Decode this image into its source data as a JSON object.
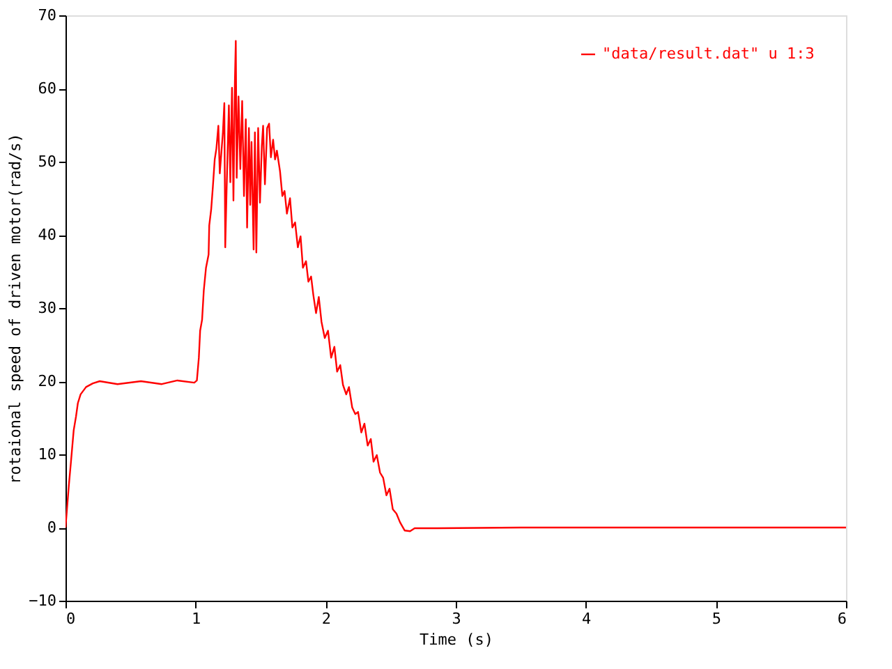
{
  "chart_data": {
    "type": "line",
    "xlabel": "Time (s)",
    "ylabel": "rotaional speed of driven motor(rad/s)",
    "xlim": [
      0,
      6
    ],
    "xticks": [
      0,
      1,
      2,
      3,
      4,
      5,
      6
    ],
    "ylim": [
      -10,
      70
    ],
    "yticks": [
      -10,
      0,
      10,
      20,
      30,
      40,
      50,
      60,
      70
    ],
    "grid": false,
    "legend": "top right",
    "marker": "none",
    "line_style": "solid",
    "series": [
      {
        "name": "\"data/result.dat\" u 1:3",
        "color": "#ff0000",
        "x": [
          0,
          0.01,
          0.025,
          0.042,
          0.063,
          0.081,
          0.095,
          0.116,
          0.158,
          0.21,
          0.263,
          0.4,
          0.58,
          0.74,
          0.86,
          0.99,
          1.01,
          1.025,
          1.035,
          1.05,
          1.063,
          1.08,
          1.1,
          1.105,
          1.12,
          1.133,
          1.147,
          1.16,
          1.175,
          1.186,
          1.21,
          1.221,
          1.228,
          1.239,
          1.256,
          1.267,
          1.28,
          1.291,
          1.302,
          1.309,
          1.316,
          1.33,
          1.344,
          1.358,
          1.372,
          1.386,
          1.396,
          1.41,
          1.42,
          1.43,
          1.446,
          1.456,
          1.467,
          1.481,
          1.495,
          1.509,
          1.519,
          1.533,
          1.55,
          1.565,
          1.579,
          1.596,
          1.611,
          1.625,
          1.649,
          1.667,
          1.684,
          1.702,
          1.726,
          1.744,
          1.765,
          1.786,
          1.807,
          1.825,
          1.849,
          1.867,
          1.888,
          1.905,
          1.926,
          1.947,
          1.968,
          1.993,
          2.018,
          2.042,
          2.067,
          2.088,
          2.112,
          2.133,
          2.158,
          2.179,
          2.204,
          2.228,
          2.249,
          2.274,
          2.298,
          2.323,
          2.347,
          2.368,
          2.393,
          2.418,
          2.442,
          2.467,
          2.491,
          2.516,
          2.544,
          2.572,
          2.607,
          2.649,
          2.684,
          2.86,
          3.5,
          4.5,
          5.5,
          6
        ],
        "values": [
          0,
          2.2,
          5.6,
          9.0,
          13.3,
          15.2,
          17.0,
          18.2,
          19.2,
          19.7,
          20.0,
          19.6,
          20.0,
          19.6,
          20.1,
          19.8,
          20.1,
          23.2,
          26.9,
          28.4,
          32.4,
          35.5,
          37.3,
          41.3,
          43.5,
          46.6,
          50.3,
          51.8,
          54.9,
          48.4,
          54.0,
          58.0,
          38.3,
          46.6,
          57.7,
          47.2,
          60.1,
          44.7,
          60.8,
          66.5,
          47.8,
          58.9,
          49.0,
          58.3,
          45.3,
          55.8,
          41.0,
          54.6,
          44.1,
          52.7,
          38.0,
          54.0,
          37.6,
          54.6,
          44.4,
          52.1,
          54.9,
          46.9,
          54.6,
          55.2,
          50.6,
          53.0,
          50.3,
          51.5,
          48.7,
          45.3,
          46.0,
          42.9,
          45.0,
          41.0,
          41.7,
          38.3,
          39.8,
          35.5,
          36.4,
          33.6,
          34.3,
          31.8,
          29.3,
          31.5,
          28.1,
          25.9,
          26.9,
          23.2,
          24.7,
          21.3,
          22.2,
          19.5,
          18.2,
          19.2,
          16.4,
          15.5,
          15.8,
          13.0,
          14.2,
          11.2,
          12.1,
          9.0,
          9.9,
          7.5,
          6.8,
          4.4,
          5.3,
          2.5,
          1.9,
          0.7,
          -0.4,
          -0.5,
          -0.1,
          -0.1,
          0.0,
          0.0,
          0.0,
          0.0
        ]
      }
    ]
  }
}
